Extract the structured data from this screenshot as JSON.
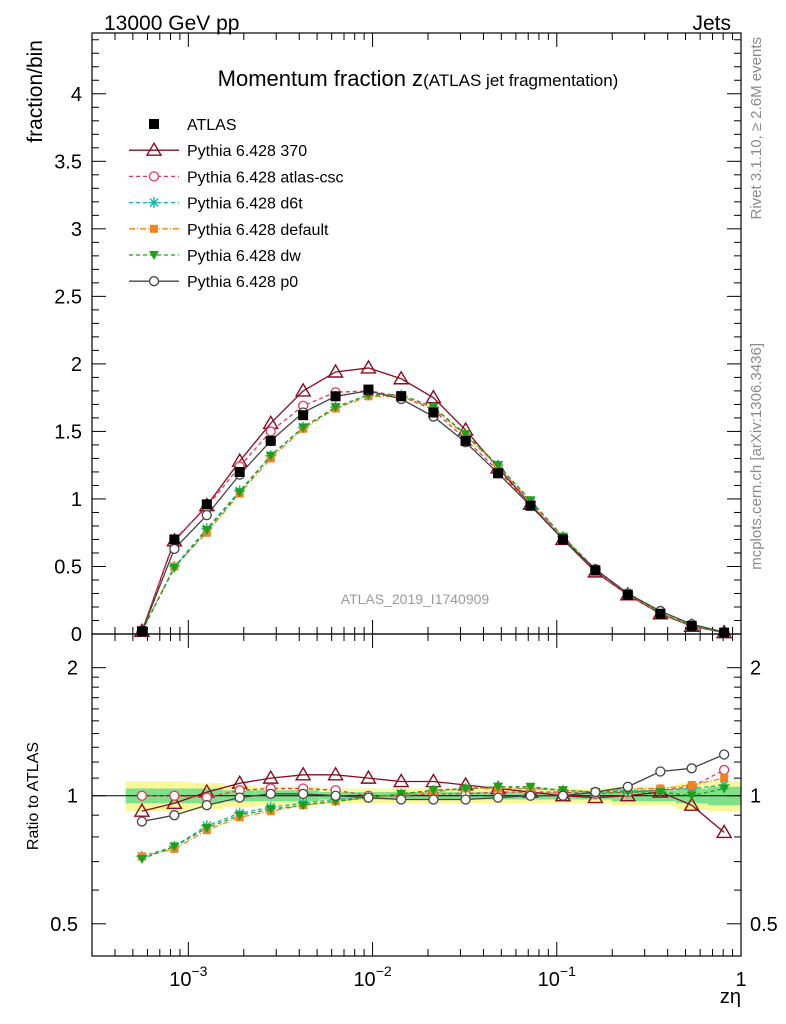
{
  "header": {
    "left": "13000 GeV pp",
    "right": "Jets"
  },
  "side_labels": {
    "rivet": "Rivet 3.1.10, ≥ 2.6M events",
    "mcplots": "mcplots.cern.ch [arXiv:1306.3436]"
  },
  "chart_data": {
    "type": "line",
    "title": "Momentum fraction z",
    "subtitle": "(ATLAS jet fragmentation)",
    "watermark": "ATLAS_2019_I1740909",
    "x": [
      0.00056,
      0.00084,
      0.00126,
      0.0019,
      0.0028,
      0.0042,
      0.0063,
      0.0095,
      0.0143,
      0.0214,
      0.032,
      0.048,
      0.072,
      0.108,
      0.162,
      0.243,
      0.365,
      0.54,
      0.81
    ],
    "xlim": [
      0.0003,
      1
    ],
    "xscale": "log",
    "xticks": [
      0.001,
      0.01,
      0.1,
      1
    ],
    "xtick_labels": [
      "10",
      "10",
      "10",
      "1"
    ],
    "xtick_exps": [
      "−3",
      "−2",
      "−1",
      ""
    ],
    "xlabel": "zη",
    "ylabel": "fraction/bin",
    "ylim": [
      0,
      4.45
    ],
    "yticks": [
      0,
      0.5,
      1,
      1.5,
      2,
      2.5,
      3,
      3.5,
      4
    ],
    "ytick_labels": [
      "0",
      "0.5",
      "1",
      "1.5",
      "2",
      "2.5",
      "3",
      "3.5",
      "4"
    ],
    "ratio": {
      "ylabel": "Ratio to ATLAS",
      "yscale": "log",
      "ylim": [
        0.42,
        2.4
      ],
      "yticks": [
        0.5,
        1,
        2
      ],
      "ytick_labels": [
        "0.5",
        "1",
        "2"
      ],
      "band_inner": [
        0.04,
        0.04,
        0.04,
        0.03,
        0.03,
        0.03,
        0.02,
        0.02,
        0.02,
        0.02,
        0.02,
        0.02,
        0.02,
        0.02,
        0.02,
        0.03,
        0.03,
        0.04,
        0.05
      ],
      "band_outer": [
        0.08,
        0.08,
        0.07,
        0.06,
        0.05,
        0.05,
        0.04,
        0.04,
        0.04,
        0.04,
        0.04,
        0.04,
        0.04,
        0.04,
        0.04,
        0.05,
        0.05,
        0.07,
        0.08
      ],
      "band_inner_color": "#7fe08a",
      "band_outer_color": "#fbf79a"
    },
    "series": [
      {
        "name": "ATLAS",
        "color": "#000000",
        "marker": "square",
        "dash": "none",
        "line": false,
        "values": [
          0.02,
          0.7,
          0.96,
          1.2,
          1.43,
          1.62,
          1.76,
          1.81,
          1.76,
          1.64,
          1.43,
          1.19,
          0.95,
          0.7,
          0.47,
          0.29,
          0.15,
          0.06,
          0.01
        ],
        "ratio": [
          1,
          1,
          1,
          1,
          1,
          1,
          1,
          1,
          1,
          1,
          1,
          1,
          1,
          1,
          1,
          1,
          1,
          1,
          1
        ]
      },
      {
        "name": "Pythia 6.428 370",
        "color": "#8b0a1f",
        "marker": "triangle-open",
        "dash": "none",
        "line": true,
        "values": [
          0.02,
          0.69,
          0.95,
          1.28,
          1.56,
          1.8,
          1.94,
          1.97,
          1.89,
          1.75,
          1.51,
          1.23,
          0.96,
          0.7,
          0.46,
          0.29,
          0.15,
          0.057,
          0.01
        ],
        "ratio": [
          0.92,
          0.96,
          1.02,
          1.07,
          1.1,
          1.12,
          1.12,
          1.1,
          1.08,
          1.08,
          1.06,
          1.04,
          1.02,
          1.0,
          0.99,
          1.0,
          1.02,
          0.95,
          0.82
        ]
      },
      {
        "name": "Pythia 6.428 atlas-csc",
        "color": "#e8365a",
        "marker": "circle-open",
        "dash": "4,3",
        "line": true,
        "values": [
          0.02,
          0.7,
          0.94,
          1.24,
          1.5,
          1.69,
          1.79,
          1.8,
          1.76,
          1.66,
          1.44,
          1.21,
          0.96,
          0.71,
          0.47,
          0.29,
          0.15,
          0.06,
          0.01
        ],
        "ratio": [
          1.0,
          1.0,
          0.99,
          1.03,
          1.04,
          1.04,
          1.03,
          1.0,
          1.0,
          1.01,
          1.01,
          1.02,
          1.02,
          1.02,
          1.01,
          1.02,
          1.03,
          1.05,
          1.15
        ]
      },
      {
        "name": "Pythia 6.428 d6t",
        "color": "#14b8a6",
        "marker": "star",
        "dash": "4,3",
        "line": true,
        "values": [
          0.02,
          0.5,
          0.78,
          1.06,
          1.32,
          1.53,
          1.68,
          1.77,
          1.77,
          1.68,
          1.48,
          1.25,
          0.98,
          0.72,
          0.48,
          0.3,
          0.155,
          0.062,
          0.011
        ],
        "ratio": [
          0.72,
          0.76,
          0.85,
          0.91,
          0.94,
          0.96,
          0.98,
          0.99,
          1.01,
          1.03,
          1.04,
          1.05,
          1.04,
          1.03,
          1.02,
          1.03,
          1.03,
          1.04,
          1.06
        ]
      },
      {
        "name": "Pythia 6.428 default",
        "color": "#f58220",
        "marker": "square-small",
        "dash": "6,2,1,2",
        "line": true,
        "values": [
          0.02,
          0.5,
          0.75,
          1.04,
          1.3,
          1.52,
          1.67,
          1.76,
          1.76,
          1.67,
          1.47,
          1.24,
          0.98,
          0.72,
          0.48,
          0.3,
          0.156,
          0.063,
          0.011
        ],
        "ratio": [
          0.72,
          0.75,
          0.83,
          0.89,
          0.92,
          0.95,
          0.97,
          0.99,
          1.01,
          1.02,
          1.04,
          1.04,
          1.04,
          1.03,
          1.02,
          1.04,
          1.04,
          1.06,
          1.1
        ]
      },
      {
        "name": "Pythia 6.428 dw",
        "color": "#1aa31a",
        "marker": "triangle-down",
        "dash": "4,3",
        "line": true,
        "values": [
          0.02,
          0.49,
          0.77,
          1.05,
          1.32,
          1.53,
          1.68,
          1.77,
          1.77,
          1.68,
          1.48,
          1.25,
          0.99,
          0.72,
          0.48,
          0.3,
          0.155,
          0.062,
          0.011
        ],
        "ratio": [
          0.71,
          0.76,
          0.84,
          0.9,
          0.93,
          0.95,
          0.97,
          0.99,
          1.01,
          1.03,
          1.04,
          1.05,
          1.05,
          1.03,
          1.02,
          1.02,
          1.02,
          1.0,
          1.04
        ]
      },
      {
        "name": "Pythia 6.428 p0",
        "color": "#444444",
        "marker": "circle-open",
        "dash": "none",
        "line": true,
        "values": [
          0.018,
          0.63,
          0.88,
          1.18,
          1.43,
          1.64,
          1.76,
          1.8,
          1.74,
          1.61,
          1.42,
          1.19,
          0.95,
          0.7,
          0.48,
          0.3,
          0.17,
          0.072,
          0.014
        ],
        "ratio": [
          0.87,
          0.9,
          0.95,
          0.99,
          1.01,
          1.01,
          1.0,
          0.99,
          0.98,
          0.98,
          0.98,
          0.99,
          1.0,
          1.0,
          1.02,
          1.05,
          1.14,
          1.16,
          1.25
        ]
      }
    ]
  }
}
